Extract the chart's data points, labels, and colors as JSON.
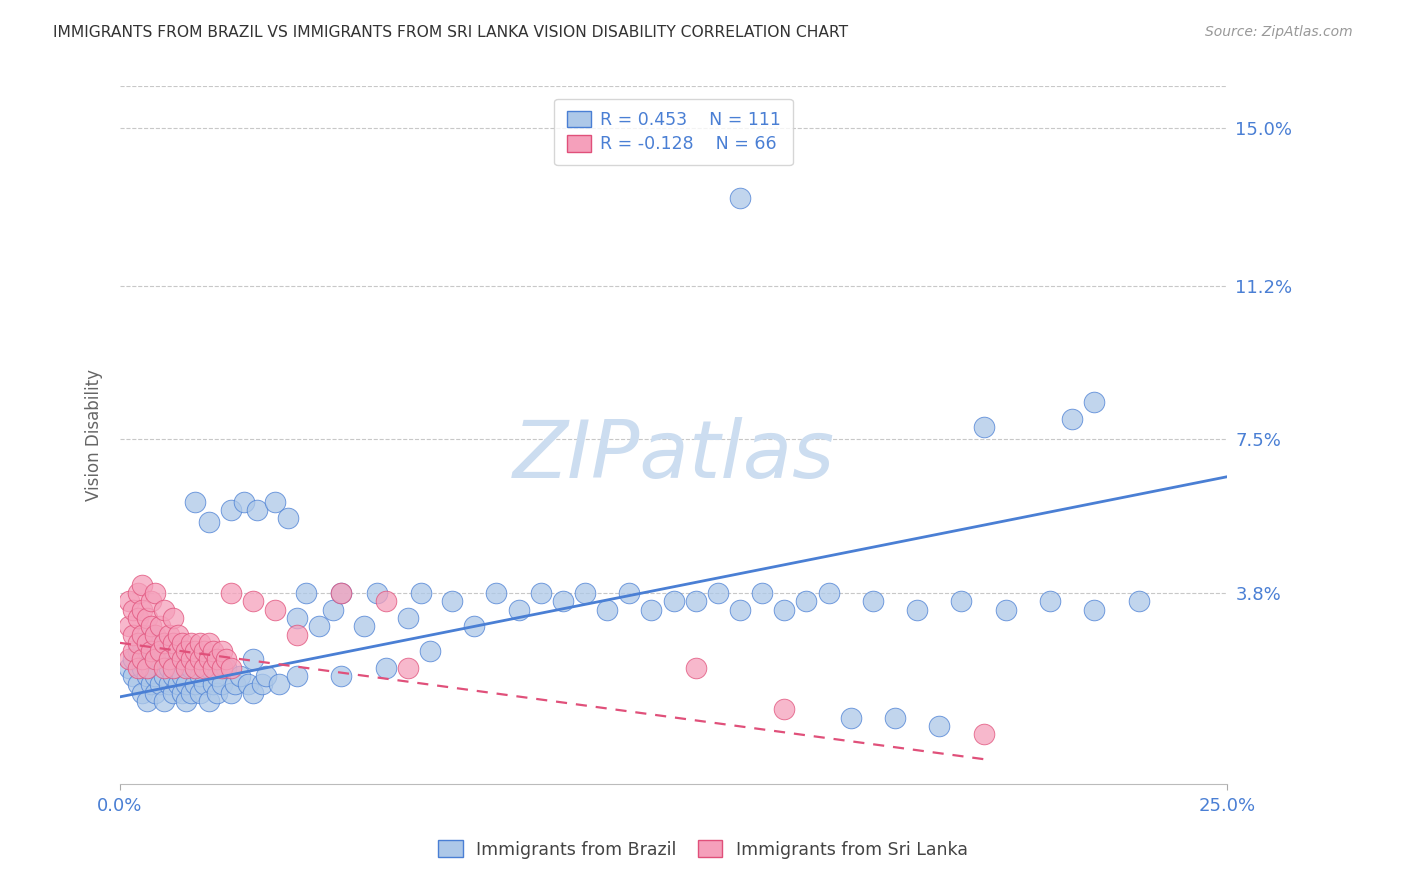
{
  "title": "IMMIGRANTS FROM BRAZIL VS IMMIGRANTS FROM SRI LANKA VISION DISABILITY CORRELATION CHART",
  "source": "Source: ZipAtlas.com",
  "ylabel": "Vision Disability",
  "xmin": 0.0,
  "xmax": 0.25,
  "ymin": -0.008,
  "ymax": 0.16,
  "yticks": [
    0.038,
    0.075,
    0.112,
    0.15
  ],
  "ytick_labels": [
    "3.8%",
    "7.5%",
    "11.2%",
    "15.0%"
  ],
  "xtick_labels": [
    "0.0%",
    "25.0%"
  ],
  "brazil_color": "#adc8e8",
  "srilanka_color": "#f5a0bb",
  "brazil_line_color": "#4a7fd4",
  "srilanka_line_color": "#e0507a",
  "legend_brazil_R": "0.453",
  "legend_brazil_N": "111",
  "legend_srilanka_R": "-0.128",
  "legend_srilanka_N": "66",
  "watermark_text": "ZIPatlas",
  "watermark_color": "#ccddf0",
  "brazil_trend_x": [
    0.0,
    0.25
  ],
  "brazil_trend_y": [
    0.013,
    0.066
  ],
  "srilanka_trend_x": [
    0.0,
    0.195
  ],
  "srilanka_trend_y": [
    0.026,
    -0.002
  ],
  "brazil_points": [
    [
      0.002,
      0.02
    ],
    [
      0.003,
      0.018
    ],
    [
      0.003,
      0.022
    ],
    [
      0.004,
      0.016
    ],
    [
      0.004,
      0.024
    ],
    [
      0.005,
      0.014
    ],
    [
      0.005,
      0.02
    ],
    [
      0.005,
      0.026
    ],
    [
      0.006,
      0.012
    ],
    [
      0.006,
      0.018
    ],
    [
      0.006,
      0.022
    ],
    [
      0.007,
      0.016
    ],
    [
      0.007,
      0.02
    ],
    [
      0.007,
      0.028
    ],
    [
      0.008,
      0.014
    ],
    [
      0.008,
      0.018
    ],
    [
      0.008,
      0.024
    ],
    [
      0.009,
      0.016
    ],
    [
      0.009,
      0.022
    ],
    [
      0.01,
      0.012
    ],
    [
      0.01,
      0.018
    ],
    [
      0.01,
      0.024
    ],
    [
      0.011,
      0.016
    ],
    [
      0.011,
      0.02
    ],
    [
      0.012,
      0.014
    ],
    [
      0.012,
      0.018
    ],
    [
      0.012,
      0.022
    ],
    [
      0.013,
      0.016
    ],
    [
      0.013,
      0.02
    ],
    [
      0.014,
      0.014
    ],
    [
      0.014,
      0.018
    ],
    [
      0.015,
      0.012
    ],
    [
      0.015,
      0.016
    ],
    [
      0.015,
      0.022
    ],
    [
      0.016,
      0.014
    ],
    [
      0.016,
      0.02
    ],
    [
      0.017,
      0.016
    ],
    [
      0.017,
      0.06
    ],
    [
      0.018,
      0.014
    ],
    [
      0.018,
      0.018
    ],
    [
      0.019,
      0.016
    ],
    [
      0.02,
      0.012
    ],
    [
      0.02,
      0.02
    ],
    [
      0.02,
      0.055
    ],
    [
      0.021,
      0.016
    ],
    [
      0.021,
      0.022
    ],
    [
      0.022,
      0.014
    ],
    [
      0.022,
      0.018
    ],
    [
      0.023,
      0.016
    ],
    [
      0.024,
      0.02
    ],
    [
      0.025,
      0.014
    ],
    [
      0.025,
      0.058
    ],
    [
      0.026,
      0.016
    ],
    [
      0.027,
      0.018
    ],
    [
      0.028,
      0.06
    ],
    [
      0.029,
      0.016
    ],
    [
      0.03,
      0.014
    ],
    [
      0.03,
      0.022
    ],
    [
      0.031,
      0.058
    ],
    [
      0.032,
      0.016
    ],
    [
      0.033,
      0.018
    ],
    [
      0.035,
      0.06
    ],
    [
      0.036,
      0.016
    ],
    [
      0.038,
      0.056
    ],
    [
      0.04,
      0.018
    ],
    [
      0.04,
      0.032
    ],
    [
      0.042,
      0.038
    ],
    [
      0.045,
      0.03
    ],
    [
      0.048,
      0.034
    ],
    [
      0.05,
      0.018
    ],
    [
      0.05,
      0.038
    ],
    [
      0.055,
      0.03
    ],
    [
      0.058,
      0.038
    ],
    [
      0.06,
      0.02
    ],
    [
      0.065,
      0.032
    ],
    [
      0.068,
      0.038
    ],
    [
      0.07,
      0.024
    ],
    [
      0.075,
      0.036
    ],
    [
      0.08,
      0.03
    ],
    [
      0.085,
      0.038
    ],
    [
      0.09,
      0.034
    ],
    [
      0.095,
      0.038
    ],
    [
      0.1,
      0.036
    ],
    [
      0.105,
      0.038
    ],
    [
      0.11,
      0.034
    ],
    [
      0.115,
      0.038
    ],
    [
      0.12,
      0.034
    ],
    [
      0.125,
      0.036
    ],
    [
      0.13,
      0.036
    ],
    [
      0.135,
      0.038
    ],
    [
      0.14,
      0.034
    ],
    [
      0.145,
      0.038
    ],
    [
      0.15,
      0.034
    ],
    [
      0.155,
      0.036
    ],
    [
      0.16,
      0.038
    ],
    [
      0.17,
      0.036
    ],
    [
      0.18,
      0.034
    ],
    [
      0.19,
      0.036
    ],
    [
      0.2,
      0.034
    ],
    [
      0.21,
      0.036
    ],
    [
      0.22,
      0.034
    ],
    [
      0.23,
      0.036
    ],
    [
      0.195,
      0.078
    ],
    [
      0.215,
      0.08
    ],
    [
      0.175,
      0.008
    ],
    [
      0.185,
      0.006
    ],
    [
      0.165,
      0.008
    ],
    [
      0.14,
      0.133
    ],
    [
      0.22,
      0.084
    ]
  ],
  "srilanka_points": [
    [
      0.002,
      0.022
    ],
    [
      0.002,
      0.03
    ],
    [
      0.002,
      0.036
    ],
    [
      0.003,
      0.024
    ],
    [
      0.003,
      0.028
    ],
    [
      0.003,
      0.034
    ],
    [
      0.004,
      0.02
    ],
    [
      0.004,
      0.026
    ],
    [
      0.004,
      0.032
    ],
    [
      0.004,
      0.038
    ],
    [
      0.005,
      0.022
    ],
    [
      0.005,
      0.028
    ],
    [
      0.005,
      0.034
    ],
    [
      0.005,
      0.04
    ],
    [
      0.006,
      0.02
    ],
    [
      0.006,
      0.026
    ],
    [
      0.006,
      0.032
    ],
    [
      0.007,
      0.024
    ],
    [
      0.007,
      0.03
    ],
    [
      0.007,
      0.036
    ],
    [
      0.008,
      0.022
    ],
    [
      0.008,
      0.028
    ],
    [
      0.008,
      0.038
    ],
    [
      0.009,
      0.024
    ],
    [
      0.009,
      0.03
    ],
    [
      0.01,
      0.02
    ],
    [
      0.01,
      0.026
    ],
    [
      0.01,
      0.034
    ],
    [
      0.011,
      0.022
    ],
    [
      0.011,
      0.028
    ],
    [
      0.012,
      0.02
    ],
    [
      0.012,
      0.026
    ],
    [
      0.012,
      0.032
    ],
    [
      0.013,
      0.024
    ],
    [
      0.013,
      0.028
    ],
    [
      0.014,
      0.022
    ],
    [
      0.014,
      0.026
    ],
    [
      0.015,
      0.02
    ],
    [
      0.015,
      0.024
    ],
    [
      0.016,
      0.022
    ],
    [
      0.016,
      0.026
    ],
    [
      0.017,
      0.02
    ],
    [
      0.017,
      0.024
    ],
    [
      0.018,
      0.022
    ],
    [
      0.018,
      0.026
    ],
    [
      0.019,
      0.02
    ],
    [
      0.019,
      0.024
    ],
    [
      0.02,
      0.022
    ],
    [
      0.02,
      0.026
    ],
    [
      0.021,
      0.02
    ],
    [
      0.021,
      0.024
    ],
    [
      0.022,
      0.022
    ],
    [
      0.023,
      0.02
    ],
    [
      0.023,
      0.024
    ],
    [
      0.024,
      0.022
    ],
    [
      0.025,
      0.02
    ],
    [
      0.025,
      0.038
    ],
    [
      0.03,
      0.036
    ],
    [
      0.035,
      0.034
    ],
    [
      0.04,
      0.028
    ],
    [
      0.05,
      0.038
    ],
    [
      0.06,
      0.036
    ],
    [
      0.065,
      0.02
    ],
    [
      0.13,
      0.02
    ],
    [
      0.15,
      0.01
    ],
    [
      0.195,
      0.004
    ]
  ]
}
